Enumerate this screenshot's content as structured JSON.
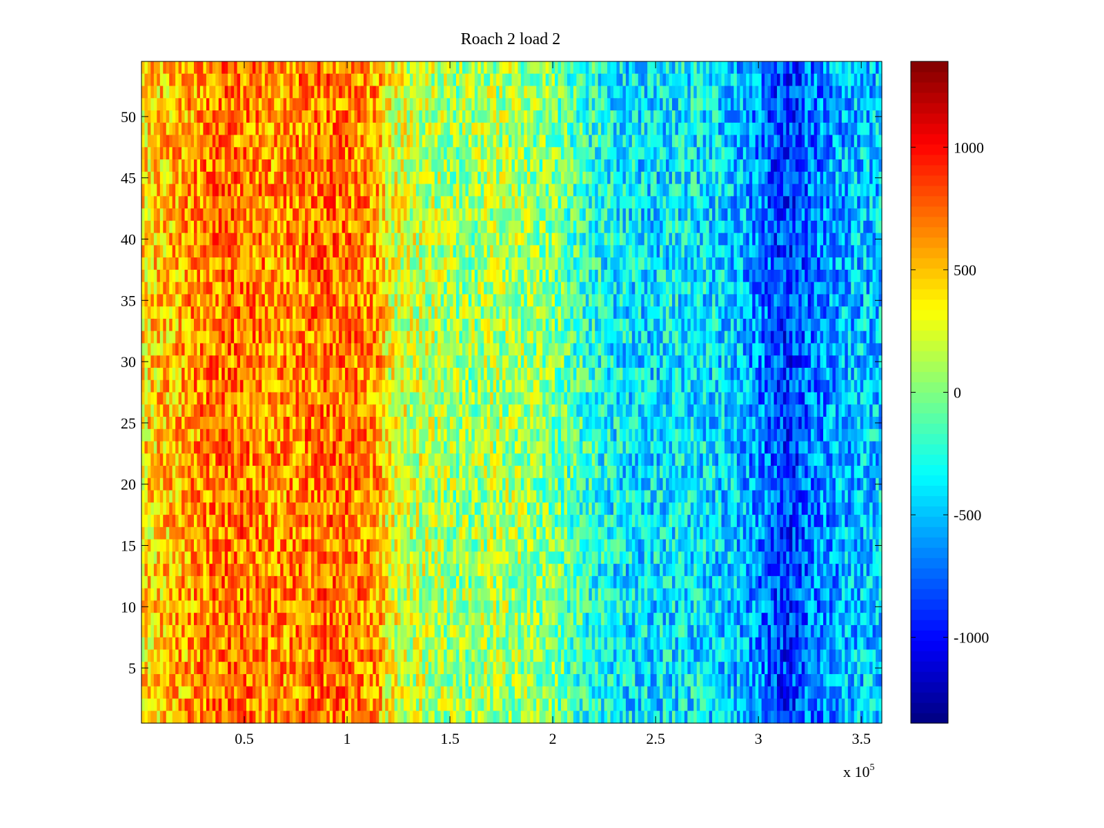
{
  "chart_data": {
    "type": "heatmap",
    "title": "Roach 2 load 2",
    "xlabel": "",
    "ylabel": "",
    "x_multiplier_label": "x 10",
    "x_multiplier_exponent": "5",
    "xlim": [
      0,
      3.6
    ],
    "ylim": [
      0.5,
      54.5
    ],
    "x_ticks": [
      0.5,
      1,
      1.5,
      2,
      2.5,
      3,
      3.5
    ],
    "x_tick_labels": [
      "0.5",
      "1",
      "1.5",
      "2",
      "2.5",
      "3",
      "3.5"
    ],
    "y_ticks": [
      5,
      10,
      15,
      20,
      25,
      30,
      35,
      40,
      45,
      50
    ],
    "y_tick_labels": [
      "5",
      "10",
      "15",
      "20",
      "25",
      "30",
      "35",
      "40",
      "45",
      "50"
    ],
    "rows": 54,
    "colormap": "jet",
    "colorbar": {
      "range": [
        -1350,
        1350
      ],
      "ticks": [
        -1000,
        -500,
        0,
        500,
        1000
      ],
      "tick_labels": [
        "-1000",
        "-500",
        "0",
        "500",
        "1000"
      ]
    },
    "column_profile": {
      "x": [
        0,
        0.1,
        0.2,
        0.3,
        0.4,
        0.5,
        0.6,
        0.7,
        0.8,
        0.9,
        1.0,
        1.1,
        1.15,
        1.2,
        1.3,
        1.4,
        1.5,
        1.6,
        1.7,
        1.8,
        1.9,
        2.0,
        2.1,
        2.2,
        2.3,
        2.4,
        2.5,
        2.6,
        2.7,
        2.8,
        2.9,
        3.0,
        3.1,
        3.15,
        3.2,
        3.3,
        3.4,
        3.5,
        3.6
      ],
      "mean_value": [
        400,
        480,
        560,
        650,
        720,
        700,
        640,
        620,
        680,
        720,
        700,
        640,
        600,
        300,
        200,
        150,
        80,
        60,
        120,
        100,
        50,
        0,
        -150,
        -250,
        -350,
        -400,
        -400,
        -380,
        -380,
        -420,
        -500,
        -650,
        -850,
        -900,
        -800,
        -650,
        -550,
        -500,
        -480
      ]
    }
  }
}
